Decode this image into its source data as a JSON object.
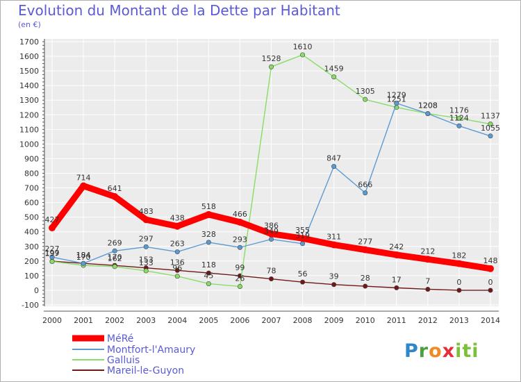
{
  "chart_data": {
    "type": "line",
    "title": "Evolution du Montant de la Dette par Habitant",
    "subtitle": "(en €)",
    "x": [
      "2000",
      "2001",
      "2002",
      "2003",
      "2004",
      "2005",
      "2006",
      "2007",
      "2008",
      "2009",
      "2010",
      "2011",
      "2012",
      "2013",
      "2014"
    ],
    "ylim": [
      -100,
      1700
    ],
    "yticks": [
      -100,
      0,
      100,
      200,
      300,
      400,
      500,
      600,
      700,
      800,
      900,
      1000,
      1100,
      1200,
      1300,
      1400,
      1500,
      1600,
      1700
    ],
    "grid": true,
    "legend_position": "bottom-left",
    "series": [
      {
        "name": "MéRé",
        "color": "#ff0000",
        "values": [
          427,
          714,
          641,
          483,
          438,
          518,
          466,
          386,
          355,
          311,
          277,
          242,
          212,
          182,
          148
        ]
      },
      {
        "name": "Montfort-l'Amaury",
        "color": "#5b9bd5",
        "values": [
          227,
          184,
          269,
          297,
          263,
          328,
          293,
          349,
          319,
          847,
          666,
          1279,
          1208,
          1124,
          1055
        ]
      },
      {
        "name": "Galluis",
        "color": "#88dd66",
        "values": [
          197,
          170,
          162,
          133,
          96,
          45,
          26,
          1528,
          1610,
          1459,
          1305,
          1251,
          1208,
          1176,
          1137
        ]
      },
      {
        "name": "Mareil-le-Guyon",
        "color": "#701818",
        "values": [
          199,
          184,
          170,
          153,
          136,
          118,
          99,
          78,
          56,
          39,
          28,
          17,
          7,
          0,
          0
        ]
      }
    ]
  },
  "logo": {
    "p": "P",
    "r": "r",
    "o": "o",
    "x": "x",
    "i": "iti"
  }
}
